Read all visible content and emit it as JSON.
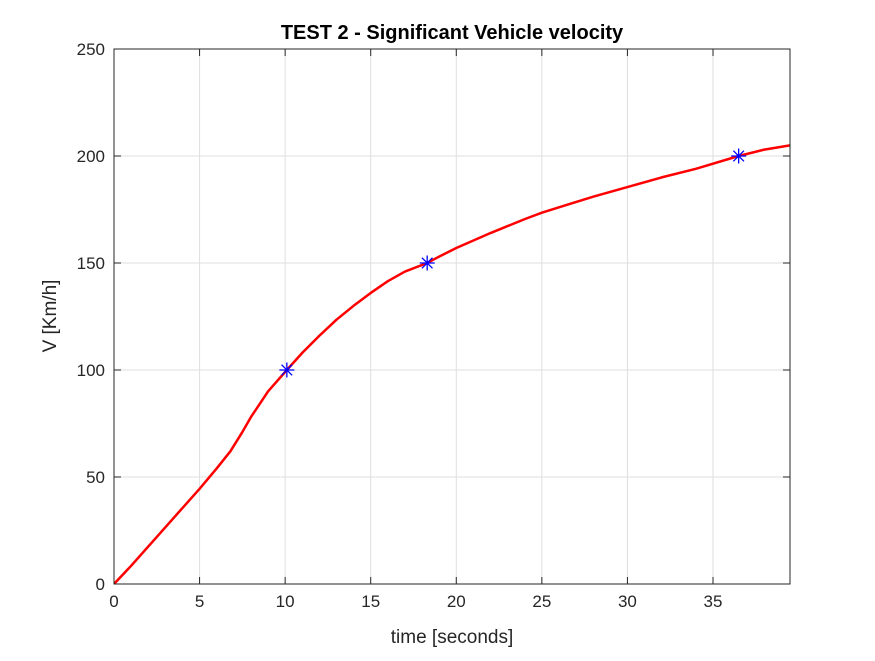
{
  "chart_data": {
    "type": "line",
    "title": "TEST 2 - Significant Vehicle velocity",
    "xlabel": "time [seconds]",
    "ylabel": "V [Km/h]",
    "xlim": [
      0,
      39.5
    ],
    "ylim": [
      0,
      250
    ],
    "x_ticks": [
      "0",
      "5",
      "10",
      "15",
      "20",
      "25",
      "30",
      "35"
    ],
    "y_ticks": [
      "0",
      "50",
      "100",
      "150",
      "200",
      "250"
    ],
    "grid": true,
    "series": [
      {
        "color": "#ff0000",
        "marker": "none",
        "x": [
          0,
          1,
          2,
          3,
          4,
          5,
          6,
          6.8,
          7.5,
          8,
          9,
          10.1,
          11,
          12,
          13,
          14,
          15,
          16,
          17,
          18.3,
          19,
          20,
          22,
          24,
          25,
          26,
          28,
          30,
          32,
          34,
          36.5,
          38,
          39.5
        ],
        "y": [
          0,
          8.5,
          17.5,
          26.5,
          35.5,
          44.5,
          54,
          62,
          71,
          78,
          90,
          100,
          108,
          116,
          123.5,
          130,
          136,
          141.5,
          146,
          150,
          153,
          157,
          164,
          170.5,
          173.5,
          176,
          181,
          185.5,
          190,
          194,
          200,
          203,
          205
        ]
      },
      {
        "color": "#0000ff",
        "marker": "asterisk",
        "x": [
          10.1,
          18.3,
          36.5
        ],
        "y": [
          100,
          150,
          200
        ]
      }
    ]
  }
}
